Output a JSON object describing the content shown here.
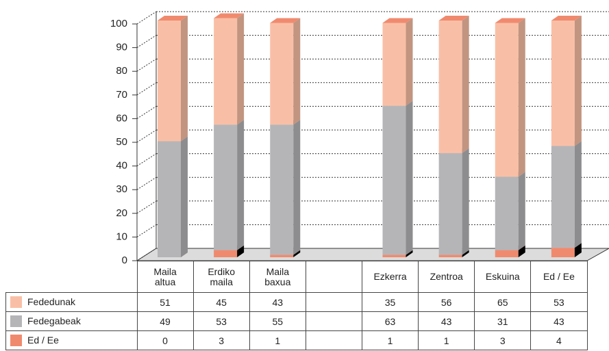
{
  "chart_data": {
    "type": "bar3d_stacked",
    "categories": [
      "Maila\naltua",
      "Erdiko\nmaila",
      "Maila\nbaxua",
      null,
      "Ezkerra",
      "Zentroa",
      "Eskuina",
      "Ed / Ee"
    ],
    "series": [
      {
        "name": "Fededunak",
        "color": "#f9bfa6",
        "values": [
          51,
          45,
          43,
          null,
          35,
          56,
          65,
          53
        ]
      },
      {
        "name": "Fedegabeak",
        "color": "#b5b5b8",
        "values": [
          49,
          53,
          55,
          null,
          63,
          43,
          31,
          43
        ]
      },
      {
        "name": "Ed / Ee",
        "color": "#f08a6e",
        "values": [
          0,
          3,
          1,
          null,
          1,
          1,
          3,
          4
        ]
      }
    ],
    "stack_order": "bottom-up: Ed / Ee, Fedegabeak, Fededunak",
    "ylim": [
      0,
      100
    ],
    "yticks": [
      0,
      10,
      20,
      30,
      40,
      50,
      60,
      70,
      80,
      90,
      100
    ],
    "grid": true
  }
}
